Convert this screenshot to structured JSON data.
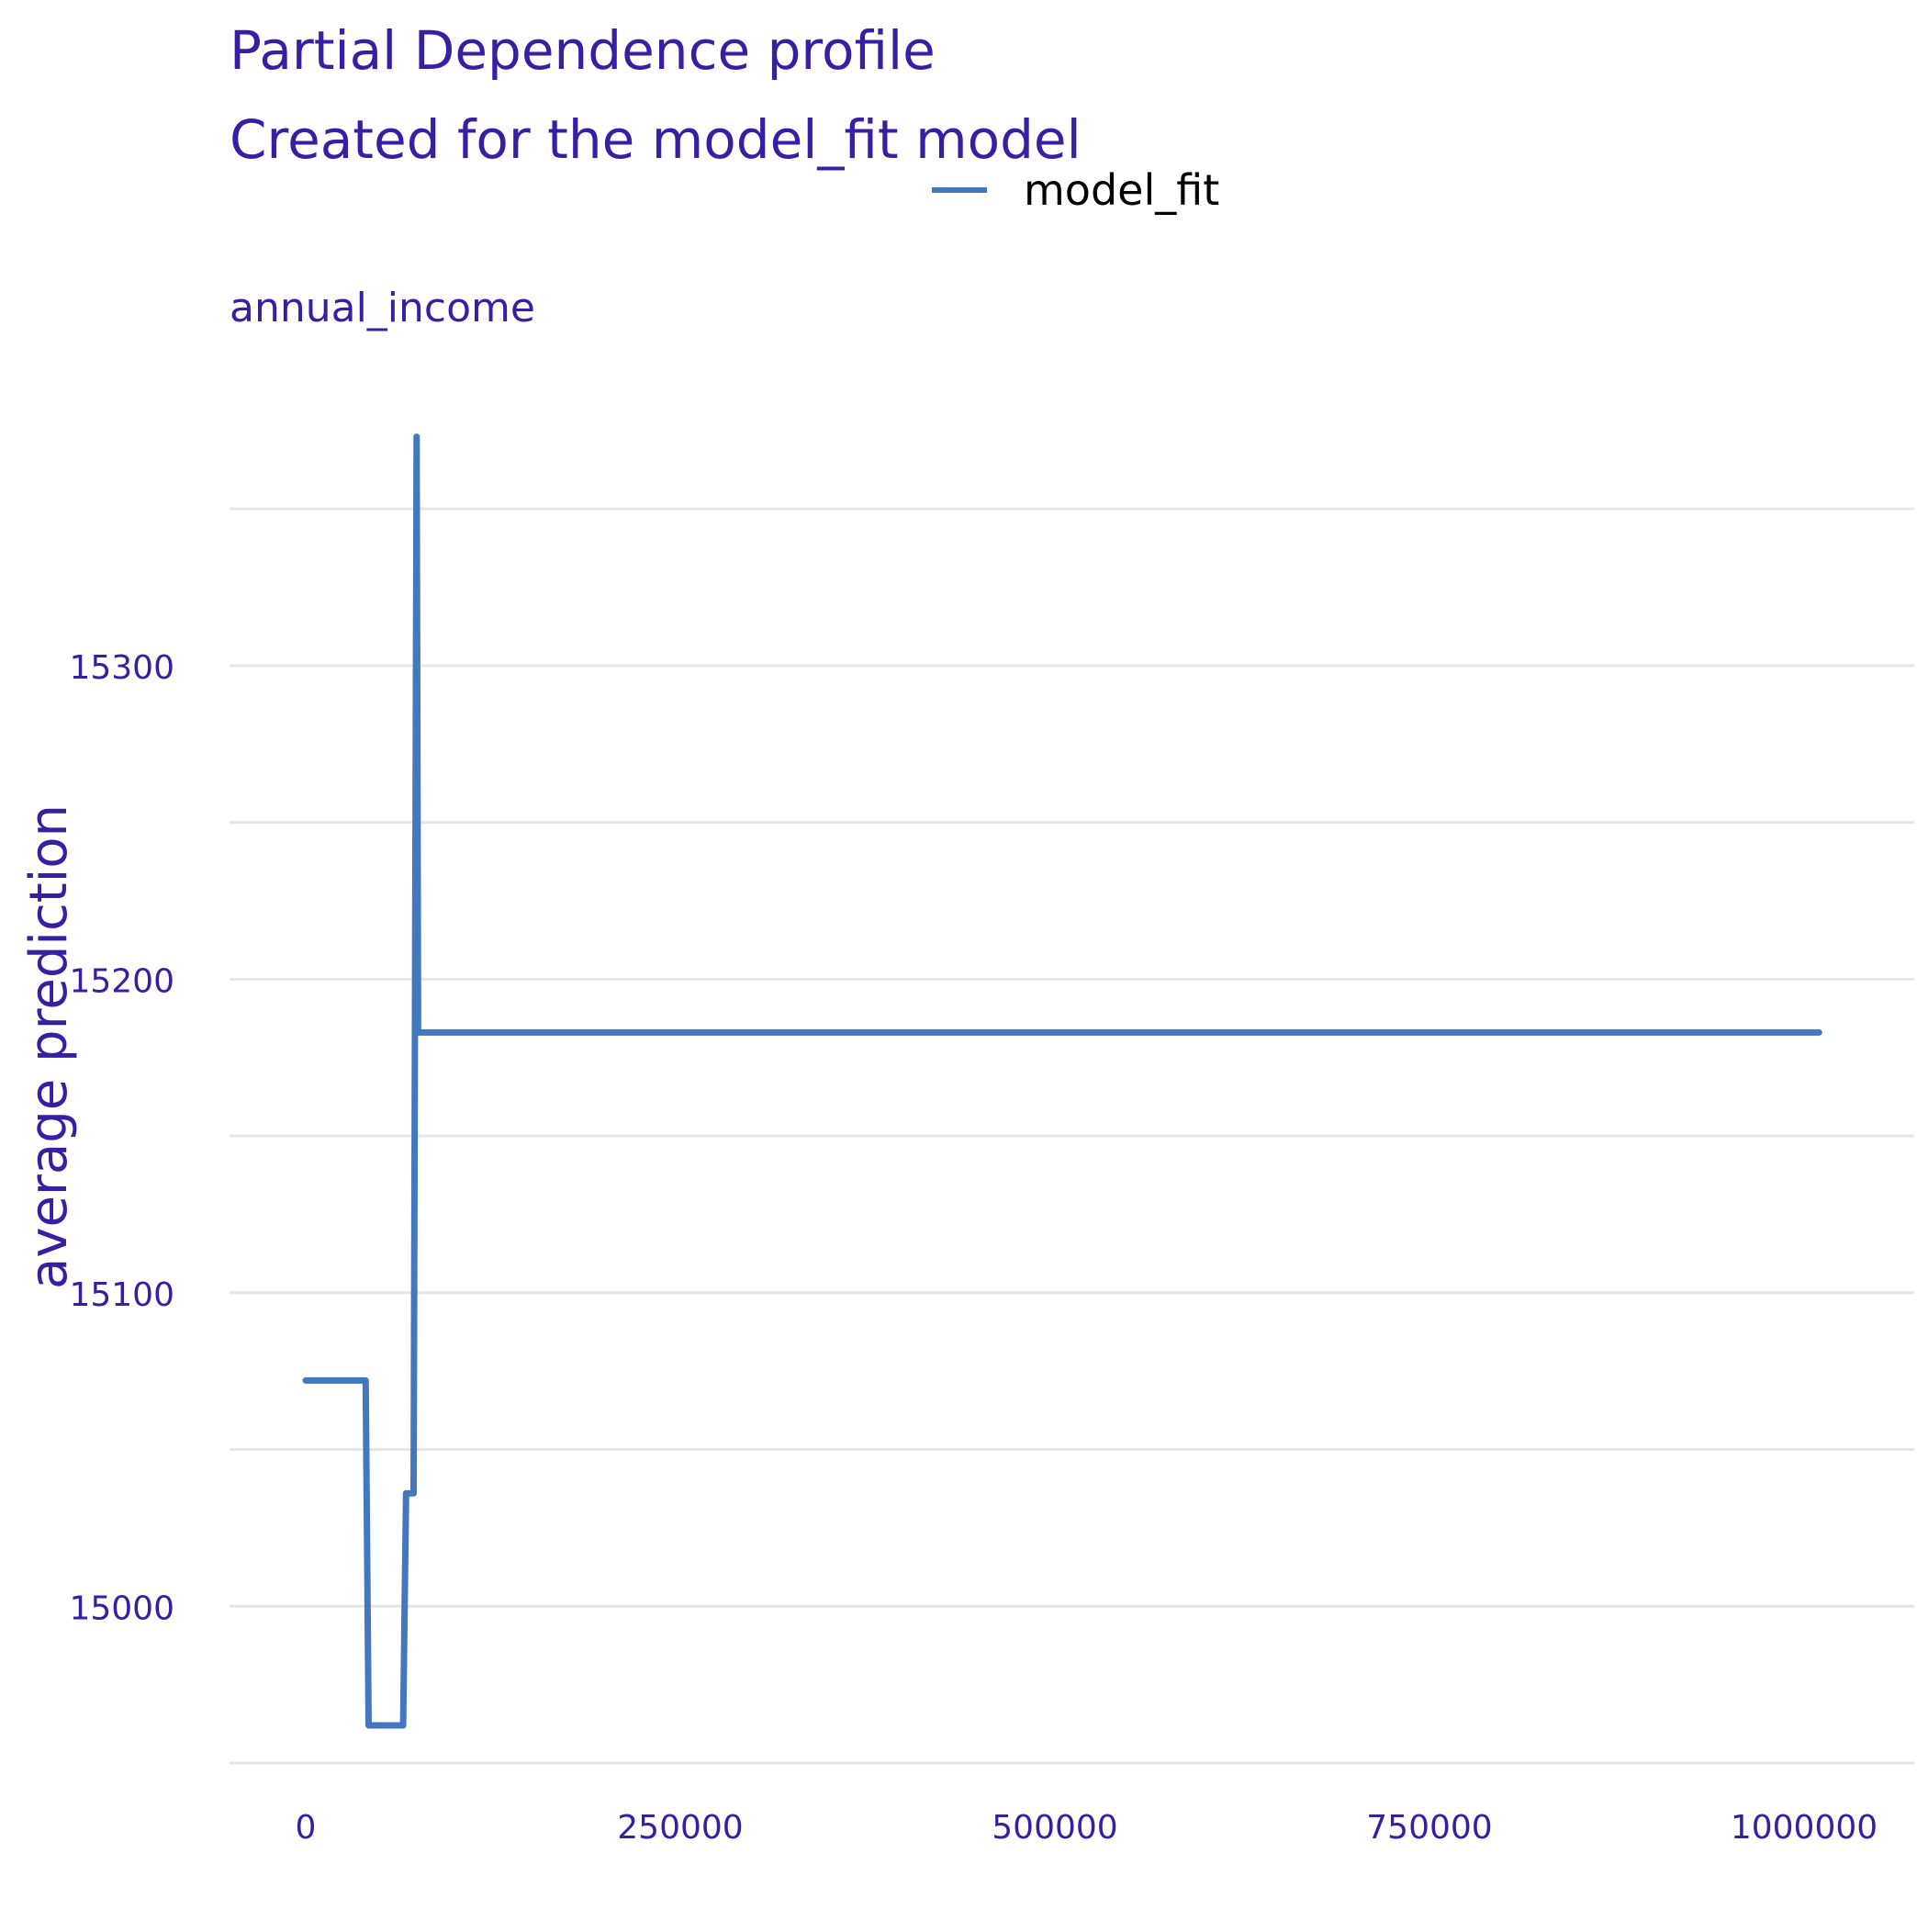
{
  "chart_data": {
    "type": "line",
    "title": "Partial Dependence profile",
    "subtitle": "Created for the model_fit model",
    "panel_label": "annual_income",
    "xlabel": "",
    "ylabel": "average prediction",
    "xlim": [
      -50000,
      1060000
    ],
    "ylim": [
      14950,
      15375
    ],
    "x_ticks": [
      0,
      250000,
      500000,
      750000,
      1000000
    ],
    "x_tick_labels": [
      "0",
      "250000",
      "500000",
      "750000",
      "1000000"
    ],
    "y_ticks": [
      15000,
      15100,
      15200,
      15300
    ],
    "y_tick_labels": [
      "15000",
      "15100",
      "15200",
      "15300"
    ],
    "y_minor_gridlines": [
      14950,
      15050,
      15150,
      15250,
      15350
    ],
    "grid": true,
    "legend_position": "top",
    "series": [
      {
        "name": "model_fit",
        "color": "#4378bf",
        "x": [
          0,
          40000,
          42000,
          65000,
          67000,
          72000,
          74000,
          75000,
          78000,
          1010000
        ],
        "y": [
          15072,
          15072,
          14962,
          14962,
          15036,
          15036,
          15373,
          15183,
          15183,
          15183
        ]
      }
    ],
    "colors": {
      "text": "#371ea3",
      "grid": "#e6e6e6",
      "legend_text": "#000000"
    }
  }
}
